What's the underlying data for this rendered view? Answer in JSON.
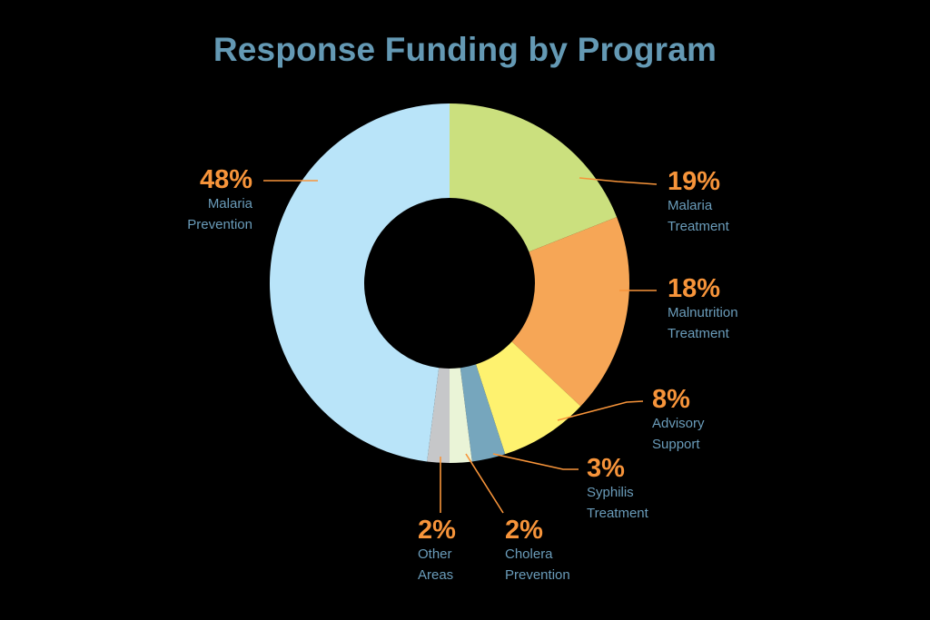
{
  "title": "Response Funding by Program",
  "colors": {
    "background": "#000000",
    "title": "#6499b4",
    "percent_text": "#f7943a",
    "label_text": "#6a9cba",
    "leader_line": "#f7943a"
  },
  "chart_data": {
    "type": "pie",
    "variant": "donut",
    "title": "Response Funding by Program",
    "unit": "%",
    "start_angle_deg": 0,
    "direction": "clockwise",
    "slices": [
      {
        "label": "Malaria Treatment",
        "value": 19,
        "color": "#cbe07e"
      },
      {
        "label": "Malnutrition Treatment",
        "value": 18,
        "color": "#f6a656"
      },
      {
        "label": "Advisory Support",
        "value": 8,
        "color": "#fef26f"
      },
      {
        "label": "Syphilis Treatment",
        "value": 3,
        "color": "#76a6bd"
      },
      {
        "label": "Cholera Prevention",
        "value": 2,
        "color": "#eaf4d7"
      },
      {
        "label": "Other Areas",
        "value": 2,
        "color": "#c6c7c9"
      },
      {
        "label": "Malaria Prevention",
        "value": 48,
        "color": "#b9e4f9"
      }
    ],
    "legend": "none (direct labels with leader lines)"
  },
  "labels": {
    "malaria_treatment": {
      "pct": "19%",
      "line1": "Malaria",
      "line2": "Treatment"
    },
    "malnutrition_treatment": {
      "pct": "18%",
      "line1": "Malnutrition",
      "line2": "Treatment"
    },
    "advisory_support": {
      "pct": "8%",
      "line1": "Advisory",
      "line2": "Support"
    },
    "syphilis_treatment": {
      "pct": "3%",
      "line1": "Syphilis",
      "line2": "Treatment"
    },
    "cholera_prevention": {
      "pct": "2%",
      "line1": "Cholera",
      "line2": "Prevention"
    },
    "other_areas": {
      "pct": "2%",
      "line1": "Other",
      "line2": "Areas"
    },
    "malaria_prevention": {
      "pct": "48%",
      "line1": "Malaria",
      "line2": "Prevention"
    }
  }
}
